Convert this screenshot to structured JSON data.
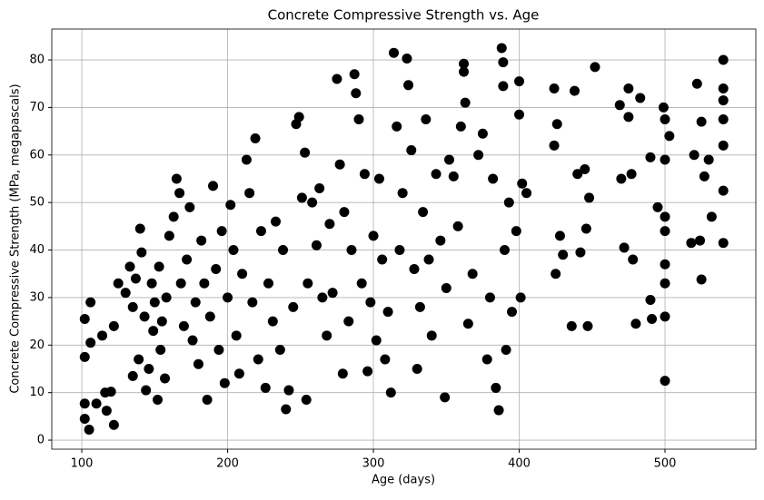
{
  "chart_data": {
    "type": "scatter",
    "title": "Concrete Compressive Strength vs. Age",
    "x_label": "Age (days)",
    "y_label": "Concrete Compressive Strength (MPa, megapascals)",
    "color": "#000000",
    "grid": true,
    "xlim": [
      79.4,
      562.3
    ],
    "ylim": [
      -1.9,
      86.5
    ],
    "xticks": [
      100,
      200,
      300,
      400,
      500
    ],
    "yticks": [
      0,
      10,
      20,
      30,
      40,
      50,
      60,
      70,
      80
    ],
    "x": [
      102,
      102,
      102,
      102,
      105,
      106,
      106,
      110,
      114,
      116,
      117,
      120,
      122,
      122,
      125,
      130,
      133,
      135,
      135,
      137,
      139,
      140,
      141,
      143,
      144,
      146,
      148,
      149,
      150,
      152,
      153,
      154,
      155,
      157,
      158,
      160,
      163,
      165,
      167,
      168,
      170,
      172,
      174,
      176,
      178,
      180,
      182,
      184,
      186,
      188,
      190,
      192,
      194,
      196,
      198,
      200,
      202,
      204,
      206,
      208,
      210,
      213,
      215,
      217,
      219,
      221,
      223,
      226,
      228,
      231,
      233,
      236,
      238,
      240,
      242,
      245,
      247,
      249,
      251,
      253,
      255,
      254,
      258,
      261,
      263,
      265,
      268,
      270,
      272,
      275,
      277,
      279,
      280,
      283,
      285,
      287,
      288,
      290,
      292,
      294,
      296,
      298,
      300,
      302,
      304,
      306,
      308,
      310,
      312,
      314,
      316,
      318,
      320,
      323,
      324,
      326,
      328,
      330,
      332,
      334,
      336,
      338,
      340,
      343,
      346,
      349,
      350,
      352,
      355,
      358,
      360,
      362,
      362,
      363,
      365,
      368,
      372,
      375,
      378,
      380,
      382,
      384,
      386,
      388,
      389,
      389,
      390,
      391,
      393,
      395,
      398,
      400,
      400,
      402,
      401,
      405,
      424,
      424,
      425,
      426,
      428,
      430,
      436,
      438,
      440,
      442,
      445,
      446,
      447,
      448,
      452,
      469,
      470,
      472,
      475,
      475,
      477,
      478,
      480,
      483,
      490,
      490,
      491,
      495,
      499,
      500,
      500,
      500,
      500,
      500,
      500,
      500,
      500,
      503,
      518,
      520,
      522,
      524,
      525,
      525,
      527,
      530,
      532,
      540,
      540,
      540,
      540,
      540,
      540,
      540
    ],
    "values": [
      25.5,
      17.5,
      7.7,
      4.5,
      2.2,
      29,
      20.5,
      7.7,
      22,
      10,
      6.2,
      10.2,
      24,
      3.2,
      33,
      31,
      36.5,
      28,
      13.5,
      34,
      17,
      44.5,
      39.5,
      26,
      10.5,
      15,
      33,
      23,
      29,
      8.5,
      36.5,
      19,
      25,
      13,
      30,
      43,
      47,
      55,
      52,
      33,
      24,
      38,
      49,
      21,
      29,
      16,
      42,
      33,
      8.5,
      26,
      53.5,
      36,
      19,
      44,
      12,
      30,
      49.5,
      40,
      22,
      14,
      35,
      59,
      52,
      29,
      63.5,
      17,
      44,
      11,
      33,
      25,
      46,
      19,
      40,
      6.5,
      10.5,
      28,
      66.5,
      68,
      51,
      60.5,
      33,
      8.5,
      50,
      41,
      53,
      30,
      22,
      45.5,
      31,
      76,
      58,
      14,
      48,
      25,
      40,
      77,
      73,
      67.5,
      33,
      56,
      14.5,
      29,
      43,
      21,
      55,
      38,
      17,
      27,
      10,
      81.5,
      66,
      40,
      52,
      80.3,
      74.7,
      61,
      36,
      15,
      28,
      48,
      67.5,
      38,
      22,
      56,
      42,
      9,
      32,
      59,
      55.5,
      45,
      66,
      79.2,
      77.5,
      71,
      24.5,
      35,
      60,
      64.5,
      17,
      30,
      55,
      11,
      6.3,
      82.5,
      79.5,
      74.5,
      40,
      19,
      50,
      27,
      44,
      75.5,
      68.5,
      54,
      30,
      52,
      74,
      62,
      35,
      66.5,
      43,
      39,
      24,
      73.5,
      56,
      39.5,
      57,
      44.5,
      24,
      51,
      78.5,
      70.5,
      55,
      40.5,
      74,
      68,
      56,
      38,
      24.5,
      72,
      59.5,
      29.5,
      25.5,
      49,
      70,
      67.5,
      59,
      47,
      44,
      37,
      33,
      26,
      12.5,
      64,
      41.5,
      60,
      75,
      42,
      33.8,
      67,
      55.5,
      59,
      47,
      80,
      74,
      71.5,
      67.5,
      62,
      52.5,
      41.5
    ]
  }
}
